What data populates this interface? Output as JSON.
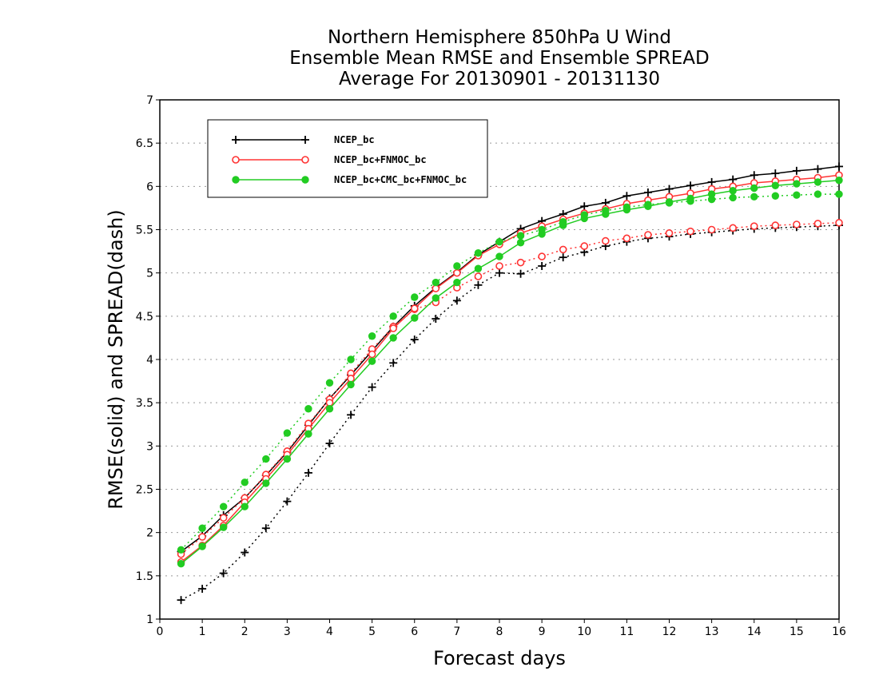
{
  "chart_data": {
    "type": "line",
    "title": [
      "Northern Hemisphere 850hPa U Wind",
      "Ensemble Mean RMSE and Ensemble SPREAD",
      "Average For 20130901 - 20131130"
    ],
    "xlabel": "Forecast days",
    "ylabel": "RMSE(solid) and SPREAD(dash)",
    "xlim": [
      0,
      16
    ],
    "ylim": [
      1,
      7
    ],
    "xticks": [
      "0",
      "1",
      "2",
      "3",
      "4",
      "5",
      "6",
      "7",
      "8",
      "9",
      "10",
      "11",
      "12",
      "13",
      "14",
      "15",
      "16"
    ],
    "yticks": [
      "1",
      "1.5",
      "2",
      "2.5",
      "3",
      "3.5",
      "4",
      "4.5",
      "5",
      "5.5",
      "6",
      "6.5",
      "7"
    ],
    "grid": "horizontal dotted",
    "legend_position": "top-left",
    "x": [
      0.5,
      1,
      1.5,
      2,
      2.5,
      3,
      3.5,
      4,
      4.5,
      5,
      5.5,
      6,
      6.5,
      7,
      7.5,
      8,
      8.5,
      9,
      9.5,
      10,
      10.5,
      11,
      11.5,
      12,
      12.5,
      13,
      13.5,
      14,
      14.5,
      15,
      15.5,
      16
    ],
    "series": [
      {
        "name": "NCEP_bc",
        "color": "#000000",
        "marker": "plus",
        "rmse": [
          1.78,
          1.96,
          2.2,
          2.4,
          2.66,
          2.93,
          3.24,
          3.55,
          3.82,
          4.1,
          4.38,
          4.62,
          4.83,
          5.01,
          5.21,
          5.36,
          5.51,
          5.6,
          5.68,
          5.77,
          5.81,
          5.89,
          5.93,
          5.97,
          6.01,
          6.05,
          6.08,
          6.13,
          6.15,
          6.18,
          6.2,
          6.23
        ],
        "spread": [
          1.22,
          1.35,
          1.53,
          1.77,
          2.05,
          2.36,
          2.69,
          3.03,
          3.36,
          3.68,
          3.96,
          4.23,
          4.47,
          4.68,
          4.86,
          5.0,
          4.99,
          5.08,
          5.18,
          5.24,
          5.31,
          5.36,
          5.4,
          5.42,
          5.45,
          5.47,
          5.49,
          5.51,
          5.52,
          5.53,
          5.54,
          5.55
        ]
      },
      {
        "name": "NCEP_bc+FNMOC_bc",
        "color": "#ff3333",
        "marker": "open-circle",
        "rmse": [
          1.66,
          1.85,
          2.08,
          2.35,
          2.62,
          2.9,
          3.2,
          3.5,
          3.78,
          4.06,
          4.36,
          4.59,
          4.82,
          5.0,
          5.2,
          5.33,
          5.46,
          5.54,
          5.62,
          5.69,
          5.74,
          5.8,
          5.84,
          5.88,
          5.92,
          5.97,
          6.0,
          6.04,
          6.06,
          6.08,
          6.1,
          6.13
        ],
        "spread": [
          1.75,
          1.95,
          2.17,
          2.4,
          2.67,
          2.94,
          3.26,
          3.54,
          3.84,
          4.12,
          4.38,
          4.58,
          4.66,
          4.83,
          4.96,
          5.08,
          5.12,
          5.19,
          5.27,
          5.31,
          5.37,
          5.4,
          5.44,
          5.46,
          5.48,
          5.5,
          5.52,
          5.54,
          5.55,
          5.56,
          5.57,
          5.58
        ]
      },
      {
        "name": "NCEP_bc+CMC_bc+FNMOC_bc",
        "color": "#22cc22",
        "marker": "filled-circle",
        "rmse": [
          1.64,
          1.84,
          2.06,
          2.3,
          2.57,
          2.85,
          3.14,
          3.43,
          3.71,
          3.98,
          4.25,
          4.48,
          4.71,
          4.89,
          5.05,
          5.19,
          5.35,
          5.45,
          5.55,
          5.63,
          5.68,
          5.73,
          5.77,
          5.82,
          5.86,
          5.91,
          5.95,
          5.98,
          6.01,
          6.03,
          6.05,
          6.07
        ],
        "spread": [
          1.8,
          2.05,
          2.3,
          2.58,
          2.85,
          3.15,
          3.43,
          3.73,
          4.0,
          4.27,
          4.5,
          4.72,
          4.89,
          5.08,
          5.23,
          5.36,
          5.43,
          5.5,
          5.59,
          5.67,
          5.72,
          5.76,
          5.79,
          5.81,
          5.83,
          5.85,
          5.87,
          5.88,
          5.89,
          5.9,
          5.91,
          5.91
        ]
      }
    ]
  }
}
